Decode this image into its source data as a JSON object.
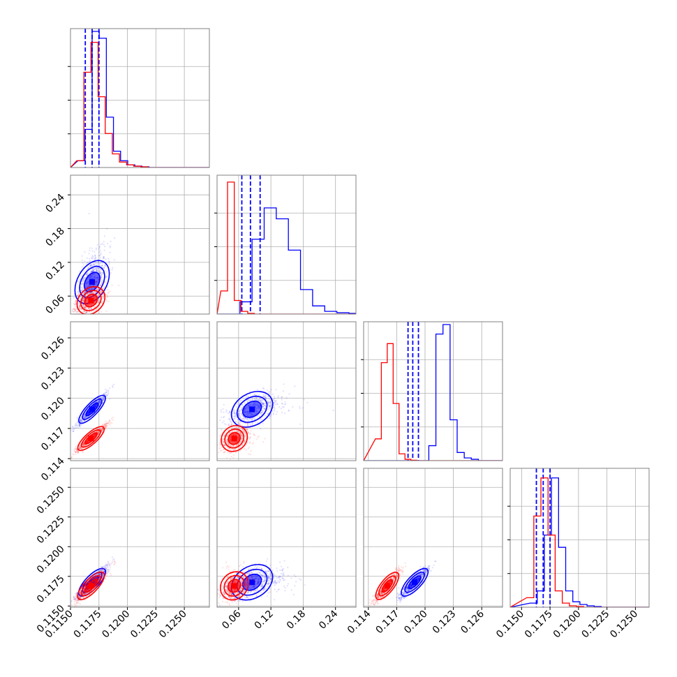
{
  "chart_data": {
    "type": "corner",
    "title": "",
    "params": [
      {
        "xlim": [
          0.115,
          0.1272
        ],
        "ylim": [
          0.028,
          0.275
        ],
        "ticks": [
          0.115,
          0.1175,
          0.12,
          0.1225,
          0.125
        ],
        "tick_labels": [
          "0.1150",
          "0.1175",
          "0.1200",
          "0.1225",
          "0.1250"
        ]
      },
      {
        "xlim": [
          0.02,
          0.278
        ],
        "ylim": [
          0.028,
          0.275
        ],
        "ticks": [
          0.06,
          0.12,
          0.18,
          0.24
        ],
        "tick_labels": [
          "0.06",
          "0.12",
          "0.18",
          "0.24"
        ]
      },
      {
        "xlim": [
          0.1135,
          0.1282
        ],
        "ylim": [
          0.1138,
          0.1276
        ],
        "ticks": [
          0.114,
          0.117,
          0.12,
          0.123,
          0.126
        ],
        "tick_labels": [
          "0.114",
          "0.117",
          "0.120",
          "0.123",
          "0.126"
        ]
      },
      {
        "xlim": [
          0.114,
          0.1262
        ],
        "ylim": [
          0.1149,
          0.1266
        ],
        "ticks": [
          0.115,
          0.1175,
          0.12,
          0.1225,
          0.125
        ],
        "tick_labels": [
          "0.1150",
          "0.1175",
          "0.1200",
          "0.1225",
          "0.1250"
        ]
      }
    ],
    "series": [
      {
        "color": "#0000ff",
        "means": [
          0.1169,
          0.085,
          0.1189,
          0.117
        ],
        "sigmas": [
          0.0005,
          0.018,
          0.0006,
          0.0005
        ],
        "corr": [
          [
            1,
            0.6,
            0.95,
            0.92
          ],
          [
            0.6,
            1,
            0.5,
            0.5
          ],
          [
            0.95,
            0.5,
            1,
            0.92
          ],
          [
            0.92,
            0.5,
            0.92,
            1
          ]
        ],
        "quantiles": [
          [
            0.1163,
            0.1169,
            0.1175
          ],
          [
            0.066,
            0.082,
            0.1
          ],
          [
            0.1182,
            0.1187,
            0.1193
          ],
          [
            0.1163,
            0.1169,
            0.1175
          ]
        ],
        "hist_heights": [
          [
            0.05,
            0.28,
            1.0,
            0.95,
            0.37,
            0.12,
            0.05,
            0.02,
            0.01,
            0.005,
            0,
            0,
            0,
            0
          ],
          [
            0.0,
            0.09,
            0.55,
            0.78,
            0.7,
            0.47,
            0.18,
            0.06,
            0.02,
            0.01,
            0.005,
            0,
            0,
            0
          ],
          [
            0.0,
            0.0,
            0.0,
            0.0,
            0.11,
            0.93,
            1.0,
            0.3,
            0.06,
            0.02,
            0.01,
            0,
            0,
            0
          ],
          [
            0.03,
            0.12,
            0.53,
            0.95,
            0.44,
            0.12,
            0.04,
            0.02,
            0.01,
            0.005,
            0,
            0,
            0,
            0
          ]
        ]
      },
      {
        "color": "#ff0000",
        "means": [
          0.1168,
          0.052,
          0.116,
          0.1167
        ],
        "sigmas": [
          0.0005,
          0.01,
          0.0005,
          0.0005
        ],
        "corr": [
          [
            1,
            0.5,
            0.95,
            0.92
          ],
          [
            0.5,
            1,
            0.4,
            0.4
          ],
          [
            0.95,
            0.4,
            1,
            0.92
          ],
          [
            0.92,
            0.4,
            0.92,
            1
          ]
        ],
        "hist_heights": [
          [
            0.05,
            0.7,
            0.92,
            0.52,
            0.25,
            0.1,
            0.04,
            0.02,
            0.01,
            0.005,
            0,
            0,
            0,
            0
          ],
          [
            0.17,
            0.97,
            0.1,
            0.02,
            0.005,
            0,
            0,
            0,
            0,
            0,
            0,
            0,
            0,
            0
          ],
          [
            0.16,
            0.72,
            0.86,
            0.42,
            0.05,
            0.01,
            0.003,
            0,
            0,
            0,
            0,
            0,
            0,
            0
          ],
          [
            0.07,
            0.67,
            0.95,
            0.53,
            0.12,
            0.03,
            0.01,
            0.005,
            0,
            0,
            0,
            0,
            0,
            0
          ]
        ]
      }
    ],
    "grid": true,
    "legend": "none"
  }
}
